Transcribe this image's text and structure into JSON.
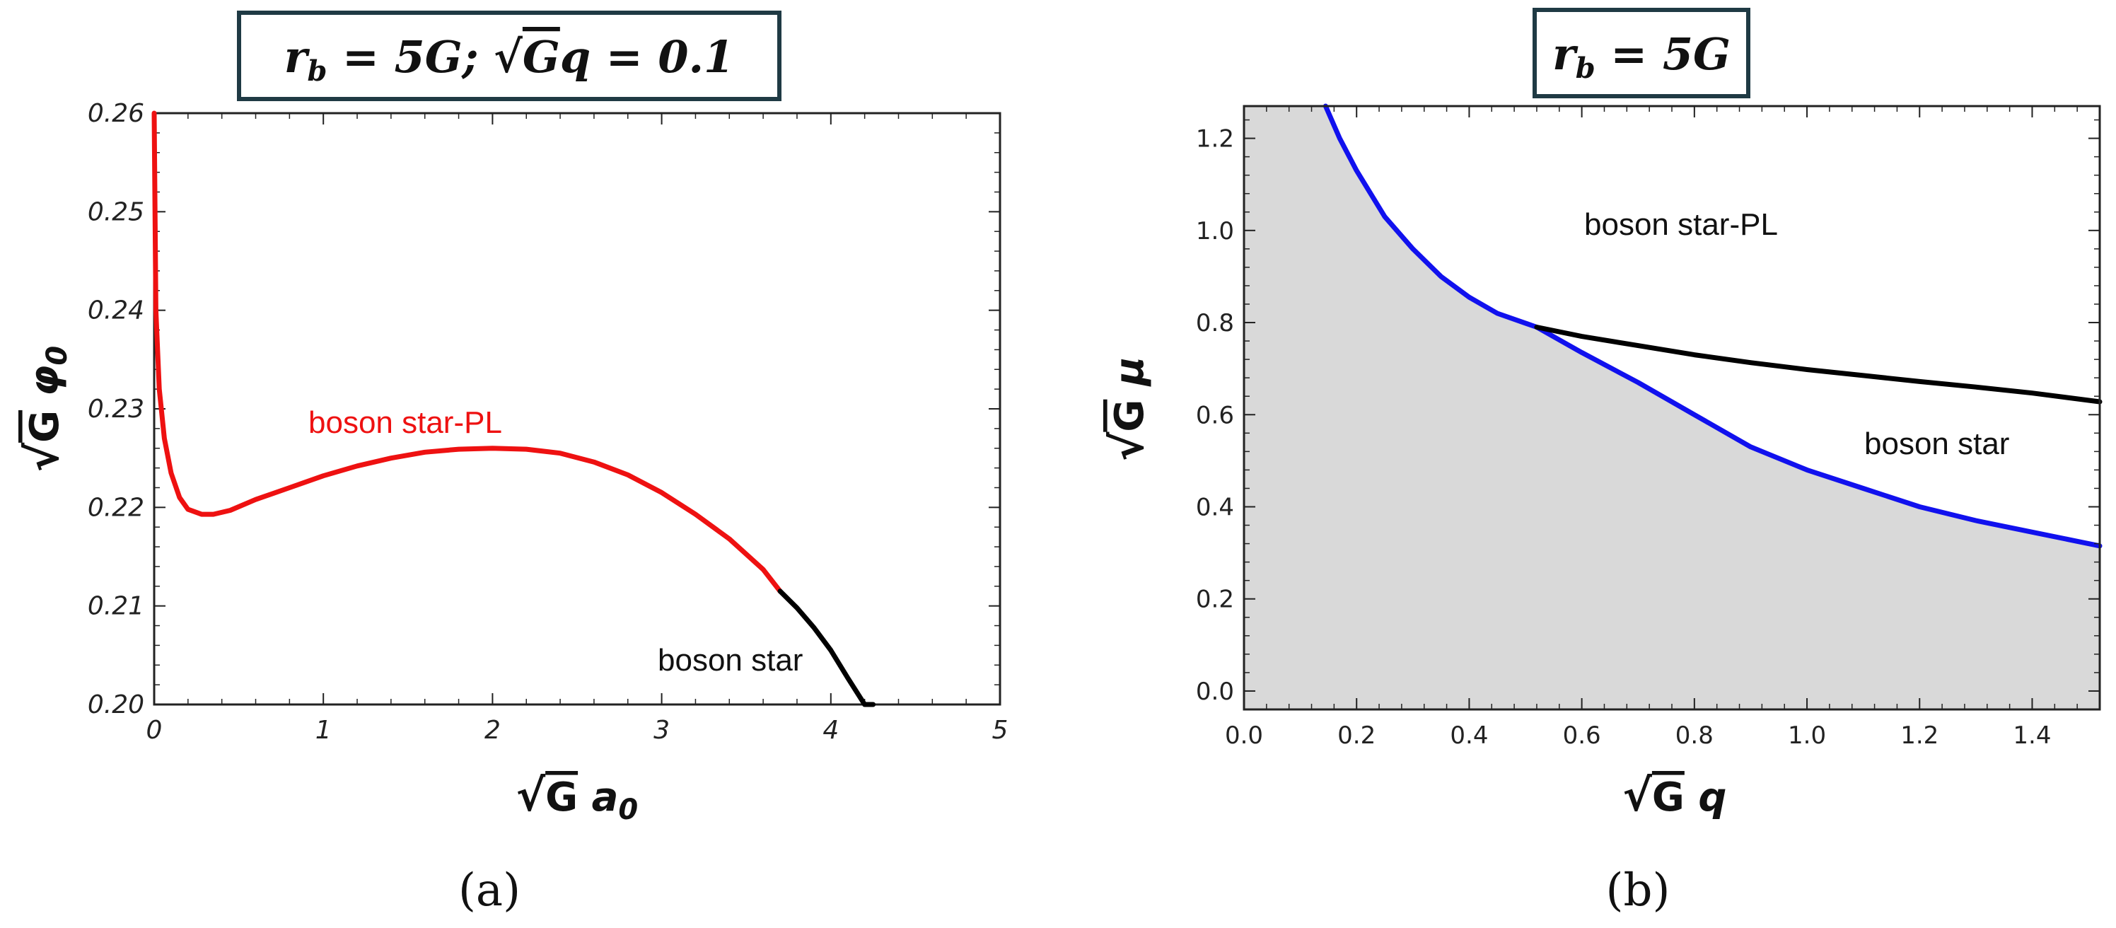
{
  "panels": {
    "a": {
      "box_title_parts": [
        "r",
        "b",
        " = 5",
        "G",
        ";  √",
        "G",
        "q",
        " = 0.1"
      ],
      "panel_label": "(a)",
      "xlabel_parts": [
        "√",
        "G",
        " a",
        "0"
      ],
      "ylabel_parts": [
        "√",
        "G",
        " φ",
        "0"
      ]
    },
    "b": {
      "box_title_parts": [
        "r",
        "b",
        " = 5",
        "G"
      ],
      "panel_label": "(b)",
      "xlabel_parts": [
        "√",
        "G",
        " q"
      ],
      "ylabel_parts": [
        "√",
        "G",
        " μ"
      ]
    }
  },
  "colors": {
    "red": "#ee1111",
    "black": "#000000",
    "blue": "#1111ee",
    "shade": "#d9d9d9",
    "box_border": "#1f3a44"
  },
  "chart_data": [
    {
      "type": "line",
      "title": "r_b = 5G; √G q = 0.1",
      "xlabel": "√G a0",
      "ylabel": "√G φ0",
      "xlim": [
        0,
        5
      ],
      "ylim": [
        0.2,
        0.26
      ],
      "xticks": [
        0,
        1,
        2,
        3,
        4,
        5
      ],
      "yticks": [
        0.2,
        0.21,
        0.22,
        0.23,
        0.24,
        0.25,
        0.26
      ],
      "xtick_labels": [
        "0",
        "1",
        "2",
        "3",
        "4",
        "5"
      ],
      "ytick_labels": [
        "0.20",
        "0.21",
        "0.22",
        "0.23",
        "0.24",
        "0.25",
        "0.26"
      ],
      "series": [
        {
          "name": "boson star-PL",
          "color": "#ee1111",
          "x": [
            0.0,
            0.01,
            0.03,
            0.06,
            0.1,
            0.15,
            0.2,
            0.28,
            0.35,
            0.45,
            0.6,
            0.8,
            1.0,
            1.2,
            1.4,
            1.6,
            1.8,
            2.0,
            2.2,
            2.4,
            2.6,
            2.8,
            3.0,
            3.2,
            3.4,
            3.6,
            3.7
          ],
          "y": [
            0.26,
            0.24,
            0.232,
            0.227,
            0.2235,
            0.221,
            0.2198,
            0.2193,
            0.2193,
            0.2197,
            0.2208,
            0.222,
            0.2232,
            0.2242,
            0.225,
            0.2256,
            0.2259,
            0.226,
            0.2259,
            0.2255,
            0.2246,
            0.2233,
            0.2215,
            0.2193,
            0.2168,
            0.2137,
            0.2115
          ]
        },
        {
          "name": "boson star",
          "color": "#000000",
          "x": [
            3.7,
            3.8,
            3.9,
            4.0,
            4.1,
            4.2,
            4.25
          ],
          "y": [
            0.2115,
            0.2098,
            0.2078,
            0.2055,
            0.2027,
            0.2,
            0.2
          ]
        }
      ],
      "annotations": [
        "boson star-PL",
        "boson star"
      ]
    },
    {
      "type": "line",
      "title": "r_b = 5G",
      "xlabel": "√G q",
      "ylabel": "√G μ",
      "xlim": [
        0,
        1.52
      ],
      "ylim": [
        -0.04,
        1.27
      ],
      "xticks": [
        0,
        0.2,
        0.4,
        0.6,
        0.8,
        1.0,
        1.2,
        1.4
      ],
      "yticks": [
        0,
        0.2,
        0.4,
        0.6,
        0.8,
        1.0,
        1.2
      ],
      "xtick_labels": [
        "0.0",
        "0.2",
        "0.4",
        "0.6",
        "0.8",
        "1.0",
        "1.2",
        "1.4"
      ],
      "ytick_labels": [
        "0.0",
        "0.2",
        "0.4",
        "0.6",
        "0.8",
        "1.0",
        "1.2"
      ],
      "shaded_below": "blue",
      "series": [
        {
          "color": "#1111ee",
          "x": [
            0.145,
            0.17,
            0.2,
            0.25,
            0.3,
            0.35,
            0.4,
            0.45,
            0.52,
            0.6,
            0.7,
            0.8,
            0.9,
            1.0,
            1.1,
            1.2,
            1.3,
            1.4,
            1.52
          ],
          "y": [
            1.27,
            1.2,
            1.13,
            1.03,
            0.96,
            0.9,
            0.855,
            0.82,
            0.79,
            0.735,
            0.67,
            0.6,
            0.53,
            0.48,
            0.44,
            0.4,
            0.37,
            0.345,
            0.315
          ]
        },
        {
          "color": "#000000",
          "x": [
            0.52,
            0.6,
            0.7,
            0.8,
            0.9,
            1.0,
            1.1,
            1.2,
            1.3,
            1.4,
            1.52
          ],
          "y": [
            0.79,
            0.77,
            0.75,
            0.73,
            0.713,
            0.698,
            0.685,
            0.672,
            0.66,
            0.647,
            0.628
          ]
        }
      ],
      "annotations": [
        "boson star-PL",
        "boson star"
      ]
    }
  ]
}
